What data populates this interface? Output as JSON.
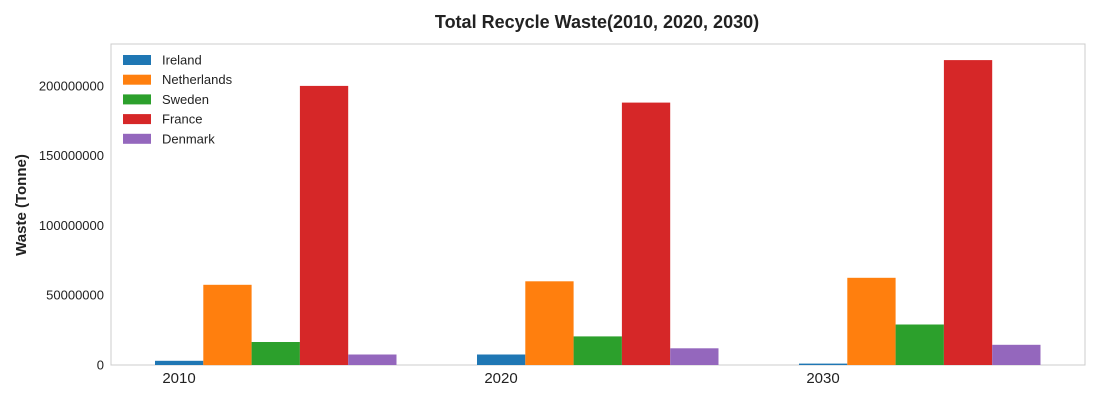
{
  "chart_data": {
    "type": "bar",
    "title": "Total Recycle Waste(2010, 2020, 2030)",
    "xlabel": "",
    "ylabel": "Waste (Tonne)",
    "categories": [
      "2010",
      "2020",
      "2030"
    ],
    "ylim": [
      0,
      230000000
    ],
    "yticks": [
      0,
      50000000,
      100000000,
      150000000,
      200000000
    ],
    "ytick_labels": [
      "0",
      "50000000",
      "100000000",
      "150000000",
      "200000000"
    ],
    "grid": false,
    "legend_position": "top-left",
    "series": [
      {
        "name": "Ireland",
        "color": "#1f77b4",
        "values": [
          3000000,
          7500000,
          1000000
        ]
      },
      {
        "name": "Netherlands",
        "color": "#ff7f0e",
        "values": [
          57500000,
          60000000,
          62500000
        ]
      },
      {
        "name": "Sweden",
        "color": "#2ca02c",
        "values": [
          16500000,
          20500000,
          29000000
        ]
      },
      {
        "name": "France",
        "color": "#d62728",
        "values": [
          200000000,
          188000000,
          218500000
        ]
      },
      {
        "name": "Denmark",
        "color": "#9467bd",
        "values": [
          7500000,
          12000000,
          14500000
        ]
      }
    ]
  }
}
